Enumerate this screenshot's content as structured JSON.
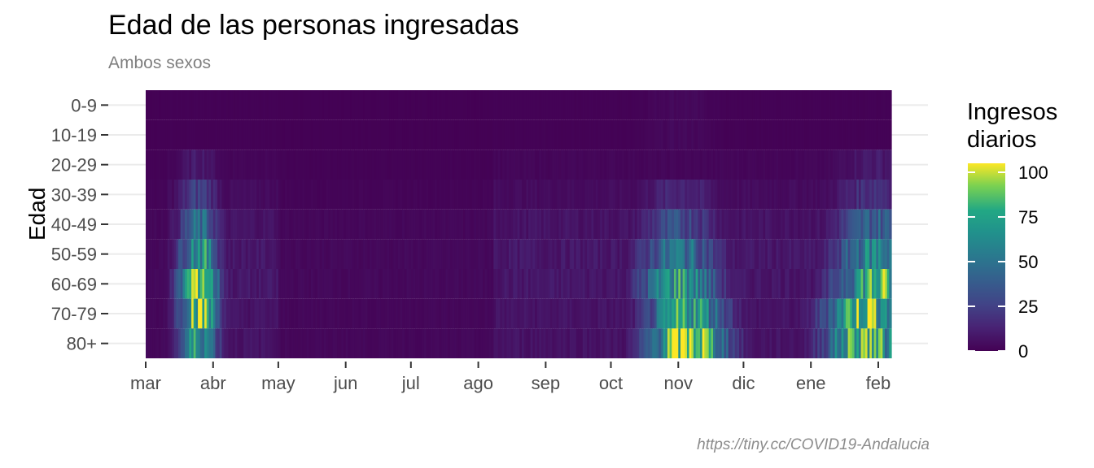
{
  "chart_data": {
    "type": "heatmap",
    "title": "Edad de las personas ingresadas",
    "subtitle": "Ambos sexos",
    "ylabel": "Edad",
    "xlabel": "",
    "y_categories": [
      "0-9",
      "10-19",
      "20-29",
      "30-39",
      "40-49",
      "50-59",
      "60-69",
      "70-79",
      "80+"
    ],
    "x_ticks": [
      "mar",
      "abr",
      "may",
      "jun",
      "jul",
      "ago",
      "sep",
      "oct",
      "nov",
      "dic",
      "ene",
      "feb"
    ],
    "x_start": "2020-03-01",
    "n_days": 343,
    "legend": {
      "title_lines": [
        "Ingresos",
        "diarios"
      ],
      "ticks": [
        0,
        25,
        50,
        75,
        100
      ],
      "range": [
        0,
        105
      ],
      "placement": "right"
    },
    "colormap": "viridis",
    "approx_peak_values": {
      "80+": [
        {
          "date": "2020-11-05",
          "value": 100
        },
        {
          "date": "2021-01-25",
          "value": 85
        },
        {
          "date": "2020-03-25",
          "value": 70
        }
      ],
      "70-79": [
        {
          "date": "2020-03-25",
          "value": 95
        },
        {
          "date": "2020-11-05",
          "value": 75
        },
        {
          "date": "2021-01-25",
          "value": 90
        }
      ],
      "60-69": [
        {
          "date": "2020-03-25",
          "value": 100
        },
        {
          "date": "2020-11-01",
          "value": 70
        },
        {
          "date": "2021-01-30",
          "value": 80
        }
      ],
      "50-59": [
        {
          "date": "2020-03-25",
          "value": 70
        },
        {
          "date": "2020-11-01",
          "value": 50
        },
        {
          "date": "2021-01-30",
          "value": 60
        }
      ],
      "40-49": [
        {
          "date": "2020-03-25",
          "value": 45
        },
        {
          "date": "2020-11-01",
          "value": 30
        },
        {
          "date": "2021-01-30",
          "value": 40
        }
      ],
      "30-39": [
        {
          "date": "2020-03-25",
          "value": 25
        },
        {
          "date": "2020-11-01",
          "value": 15
        },
        {
          "date": "2021-01-30",
          "value": 20
        }
      ],
      "20-29": [
        {
          "date": "2020-03-25",
          "value": 10
        },
        {
          "date": "2021-01-30",
          "value": 10
        }
      ],
      "10-19": [
        {
          "date": "2020-11-01",
          "value": 3
        }
      ],
      "0-9": [
        {
          "date": "2020-11-01",
          "value": 3
        }
      ]
    },
    "grid": true,
    "caption": "https://tiny.cc/COVID19-Andalucia"
  }
}
